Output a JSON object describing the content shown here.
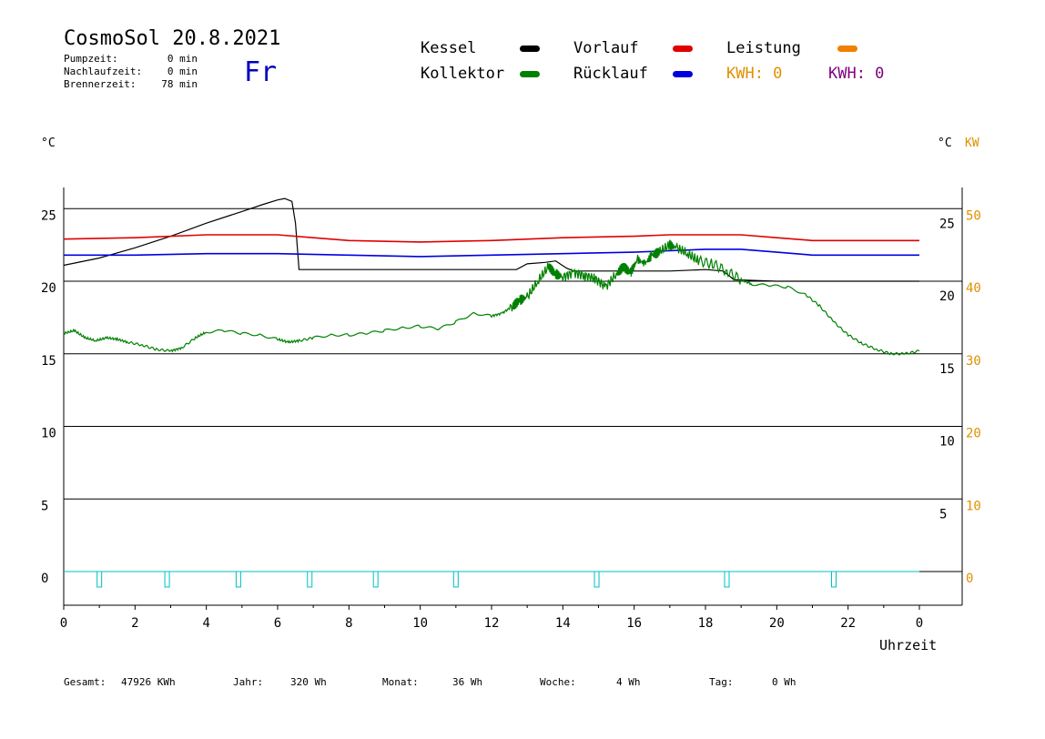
{
  "header": {
    "title": "CosmoSol 20.8.2021",
    "day": "Fr",
    "stats": [
      {
        "label": "Pumpzeit:",
        "value": "0 min"
      },
      {
        "label": "Nachlaufzeit:",
        "value": "0 min"
      },
      {
        "label": "Brennerzeit:",
        "value": "78 min"
      }
    ]
  },
  "legend": {
    "items": [
      {
        "name": "Kessel",
        "color": "#000000"
      },
      {
        "name": "Vorlauf",
        "color": "#e00000"
      },
      {
        "name": "Leistung",
        "color": "#f08000"
      },
      {
        "name": "Kollektor",
        "color": "#008000"
      },
      {
        "name": "Rücklauf",
        "color": "#0000e0"
      }
    ],
    "kwh_orange": "KWH: 0",
    "kwh_purple": "KWH: 0",
    "kwh_orange_color": "#e09000",
    "kwh_purple_color": "#800080"
  },
  "axes": {
    "left_unit": "°C",
    "right_unit": "°C",
    "right_unit2": "KW",
    "xlabel": "Uhrzeit"
  },
  "footer": [
    {
      "label": "Gesamt:",
      "value": "47926 KWh"
    },
    {
      "label": "Jahr:",
      "value": "320 Wh"
    },
    {
      "label": "Monat:",
      "value": "36 Wh"
    },
    {
      "label": "Woche:",
      "value": "4 Wh"
    },
    {
      "label": "Tag:",
      "value": "0 Wh"
    }
  ],
  "chart_data": {
    "type": "line",
    "xlabel": "Uhrzeit",
    "ylabel": "°C",
    "xlim": [
      0,
      24
    ],
    "ylim": [
      -2,
      26.5
    ],
    "grid": true,
    "x_ticks": [
      "0",
      "2",
      "4",
      "6",
      "8",
      "10",
      "12",
      "14",
      "16",
      "18",
      "20",
      "22",
      "0"
    ],
    "y_left_ticks": [
      25,
      20,
      15,
      10,
      5,
      0
    ],
    "y_right_ticks": [
      25,
      20,
      15,
      10,
      5
    ],
    "y_right_kw_ticks": [
      50,
      40,
      30,
      20,
      10,
      0
    ],
    "series": [
      {
        "name": "Kessel",
        "color": "#000000",
        "points": [
          [
            0,
            21.1
          ],
          [
            1,
            21.6
          ],
          [
            2,
            22.3
          ],
          [
            3,
            23.1
          ],
          [
            4,
            24.0
          ],
          [
            5,
            24.8
          ],
          [
            5.6,
            25.3
          ],
          [
            6.0,
            25.6
          ],
          [
            6.2,
            25.7
          ],
          [
            6.4,
            25.5
          ],
          [
            6.5,
            24.0
          ],
          [
            6.6,
            20.8
          ],
          [
            7,
            20.8
          ],
          [
            10,
            20.8
          ],
          [
            12,
            20.8
          ],
          [
            12.7,
            20.8
          ],
          [
            13.0,
            21.2
          ],
          [
            13.5,
            21.3
          ],
          [
            13.8,
            21.4
          ],
          [
            14.1,
            20.9
          ],
          [
            14.3,
            20.7
          ],
          [
            15,
            20.7
          ],
          [
            17,
            20.7
          ],
          [
            18,
            20.8
          ],
          [
            18.5,
            20.7
          ],
          [
            18.8,
            20.1
          ],
          [
            20,
            20.0
          ],
          [
            22,
            20.0
          ],
          [
            24,
            20.0
          ]
        ]
      },
      {
        "name": "Vorlauf",
        "color": "#e00000",
        "points": [
          [
            0,
            22.9
          ],
          [
            2,
            23.0
          ],
          [
            4,
            23.2
          ],
          [
            6,
            23.2
          ],
          [
            7,
            23.0
          ],
          [
            8,
            22.8
          ],
          [
            10,
            22.7
          ],
          [
            12,
            22.8
          ],
          [
            14,
            23.0
          ],
          [
            16,
            23.1
          ],
          [
            17,
            23.2
          ],
          [
            18,
            23.2
          ],
          [
            19,
            23.2
          ],
          [
            20,
            23.0
          ],
          [
            21,
            22.8
          ],
          [
            24,
            22.8
          ]
        ]
      },
      {
        "name": "Rücklauf",
        "color": "#0000e0",
        "points": [
          [
            0,
            21.8
          ],
          [
            2,
            21.8
          ],
          [
            4,
            21.9
          ],
          [
            6,
            21.9
          ],
          [
            8,
            21.8
          ],
          [
            10,
            21.7
          ],
          [
            12,
            21.8
          ],
          [
            14,
            21.9
          ],
          [
            16,
            22.0
          ],
          [
            17,
            22.1
          ],
          [
            18,
            22.2
          ],
          [
            19,
            22.2
          ],
          [
            20,
            22.0
          ],
          [
            21,
            21.8
          ],
          [
            24,
            21.8
          ]
        ]
      },
      {
        "name": "Kollektor",
        "color": "#008000",
        "points": [
          [
            0,
            16.4
          ],
          [
            0.3,
            16.6
          ],
          [
            0.6,
            16.1
          ],
          [
            0.9,
            15.9
          ],
          [
            1.2,
            16.1
          ],
          [
            1.5,
            16.0
          ],
          [
            1.8,
            15.8
          ],
          [
            2.2,
            15.6
          ],
          [
            2.6,
            15.3
          ],
          [
            3.0,
            15.2
          ],
          [
            3.3,
            15.4
          ],
          [
            3.7,
            16.1
          ],
          [
            4.0,
            16.5
          ],
          [
            4.5,
            16.6
          ],
          [
            5.0,
            16.4
          ],
          [
            5.5,
            16.3
          ],
          [
            6.0,
            16.0
          ],
          [
            6.3,
            15.8
          ],
          [
            6.6,
            15.9
          ],
          [
            7.0,
            16.1
          ],
          [
            7.5,
            16.3
          ],
          [
            8.0,
            16.3
          ],
          [
            8.5,
            16.4
          ],
          [
            9.0,
            16.6
          ],
          [
            9.5,
            16.8
          ],
          [
            10.0,
            16.9
          ],
          [
            10.5,
            16.7
          ],
          [
            11.0,
            17.2
          ],
          [
            11.5,
            17.8
          ],
          [
            12.0,
            17.6
          ],
          [
            12.3,
            17.8
          ],
          [
            12.6,
            18.3
          ],
          [
            12.8,
            18.7
          ],
          [
            13.0,
            18.9
          ],
          [
            13.3,
            20.0
          ],
          [
            13.6,
            21.0
          ],
          [
            13.8,
            20.5
          ],
          [
            14.0,
            20.3
          ],
          [
            14.3,
            20.6
          ],
          [
            14.6,
            20.4
          ],
          [
            14.9,
            20.2
          ],
          [
            15.2,
            19.6
          ],
          [
            15.5,
            20.5
          ],
          [
            15.7,
            21.0
          ],
          [
            15.9,
            20.6
          ],
          [
            16.1,
            21.5
          ],
          [
            16.3,
            21.2
          ],
          [
            16.5,
            21.8
          ],
          [
            16.7,
            22.0
          ],
          [
            17.0,
            22.5
          ],
          [
            17.2,
            22.3
          ],
          [
            17.5,
            21.9
          ],
          [
            17.8,
            21.4
          ],
          [
            18.2,
            21.2
          ],
          [
            18.6,
            20.7
          ],
          [
            19.0,
            20.1
          ],
          [
            19.3,
            19.8
          ],
          [
            19.8,
            19.7
          ],
          [
            20.3,
            19.6
          ],
          [
            20.8,
            19.1
          ],
          [
            21.2,
            18.3
          ],
          [
            21.6,
            17.2
          ],
          [
            22.0,
            16.3
          ],
          [
            22.4,
            15.7
          ],
          [
            22.8,
            15.3
          ],
          [
            23.2,
            15.0
          ],
          [
            23.6,
            15.0
          ],
          [
            24.0,
            15.2
          ]
        ]
      },
      {
        "name": "Leistung",
        "color": "#f08000",
        "points": []
      }
    ],
    "pump_markers": {
      "color": "#00c0c0",
      "x": [
        1.0,
        2.9,
        4.9,
        6.9,
        8.75,
        11.0,
        14.95,
        18.6,
        21.6
      ]
    }
  }
}
